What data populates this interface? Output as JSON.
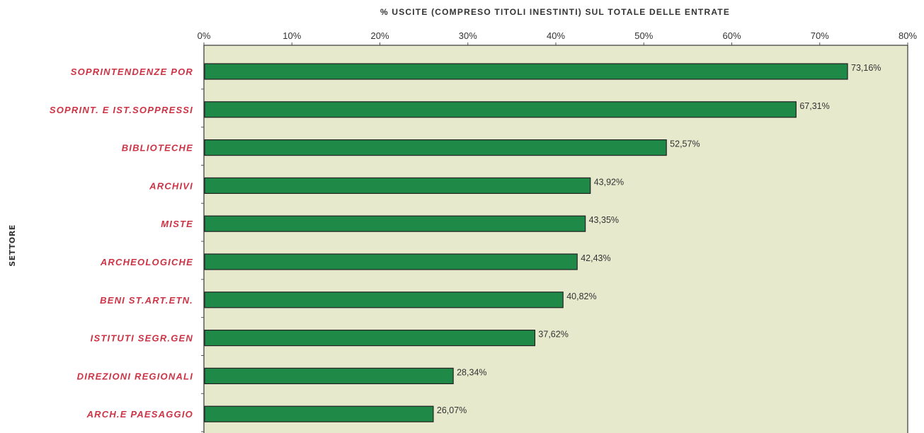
{
  "chart_data": {
    "type": "bar",
    "orientation": "horizontal",
    "title": "% USCITE (COMPRESO TITOLI INESTINTI) SUL TOTALE DELLE ENTRATE",
    "ylabel": "SETTORE",
    "xlabel": "",
    "xlim": [
      0,
      80
    ],
    "x_ticks": [
      "0%",
      "10%",
      "20%",
      "30%",
      "40%",
      "50%",
      "60%",
      "70%",
      "80%"
    ],
    "categories": [
      "SOPRINTENDENZE POR",
      "SOPRINT. E IST.SOPPRESSI",
      "BIBLIOTECHE",
      "ARCHIVI",
      "MISTE",
      "ARCHEOLOGICHE",
      "BENI ST.ART.ETN.",
      "ISTITUTI SEGR.GEN",
      "DIREZIONI REGIONALI",
      "ARCH.E PAESAGGIO"
    ],
    "values": [
      73.16,
      67.31,
      52.57,
      43.92,
      43.35,
      42.43,
      40.82,
      37.62,
      28.34,
      26.07
    ],
    "value_labels": [
      "73,16%",
      "67,31%",
      "52,57%",
      "43,92%",
      "43,35%",
      "42,43%",
      "40,82%",
      "37,62%",
      "28,34%",
      "26,07%"
    ],
    "grid": false,
    "colors": {
      "bar": "#1f8a47",
      "bar_border": "#222222",
      "plot_background": "#e6e9cc",
      "category_label": "#cc3344"
    }
  }
}
